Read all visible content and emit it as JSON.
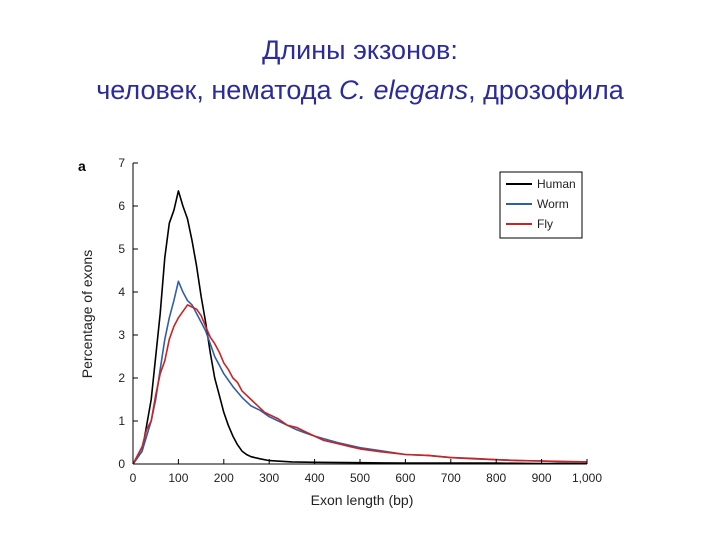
{
  "slide": {
    "title_line1": "Длины экзонов:",
    "title_line2_prefix": "человек, нематода ",
    "title_line2_italic": "C. elegans",
    "title_line2_suffix": ", дрозофила"
  },
  "chart_data": {
    "type": "line",
    "panel_label": "a",
    "xlabel": "Exon length (bp)",
    "ylabel": "Percentage of exons",
    "xlim": [
      0,
      1000
    ],
    "ylim": [
      0,
      7
    ],
    "xticks": [
      0,
      100,
      200,
      300,
      400,
      500,
      600,
      700,
      800,
      900,
      1000
    ],
    "xtick_labels": [
      "0",
      "100",
      "200",
      "300",
      "400",
      "500",
      "600",
      "700",
      "800",
      "900",
      "1,000"
    ],
    "yticks": [
      0,
      1,
      2,
      3,
      4,
      5,
      6,
      7
    ],
    "ytick_labels": [
      "0",
      "1",
      "2",
      "3",
      "4",
      "5",
      "6",
      "7"
    ],
    "grid": false,
    "legend_position": "top-right",
    "series": [
      {
        "name": "Human",
        "color": "#000000",
        "x": [
          0,
          20,
          40,
          60,
          70,
          80,
          90,
          100,
          110,
          120,
          130,
          140,
          150,
          160,
          170,
          180,
          190,
          200,
          210,
          220,
          230,
          240,
          250,
          260,
          280,
          300,
          350,
          400,
          500,
          600,
          700,
          800,
          900,
          1000
        ],
        "y": [
          0,
          0.3,
          1.5,
          3.5,
          4.8,
          5.6,
          5.9,
          6.35,
          6.0,
          5.7,
          5.2,
          4.6,
          3.9,
          3.3,
          2.6,
          2.0,
          1.6,
          1.2,
          0.9,
          0.65,
          0.45,
          0.3,
          0.22,
          0.17,
          0.12,
          0.08,
          0.05,
          0.04,
          0.03,
          0.02,
          0.02,
          0.02,
          0.01,
          0.01
        ]
      },
      {
        "name": "Worm",
        "color": "#2f5fa8",
        "x": [
          0,
          20,
          40,
          50,
          60,
          70,
          80,
          90,
          100,
          110,
          120,
          130,
          140,
          150,
          160,
          170,
          180,
          190,
          200,
          220,
          240,
          260,
          280,
          300,
          320,
          340,
          360,
          380,
          400,
          450,
          500,
          550,
          600,
          650,
          700,
          750,
          800,
          850,
          900,
          950,
          1000
        ],
        "y": [
          0,
          0.3,
          1.0,
          1.5,
          2.2,
          2.9,
          3.4,
          3.8,
          4.25,
          4.0,
          3.8,
          3.7,
          3.5,
          3.3,
          3.1,
          2.8,
          2.5,
          2.3,
          2.1,
          1.8,
          1.55,
          1.35,
          1.25,
          1.1,
          1.0,
          0.9,
          0.8,
          0.72,
          0.65,
          0.5,
          0.38,
          0.3,
          0.22,
          0.2,
          0.15,
          0.13,
          0.1,
          0.08,
          0.07,
          0.05,
          0.05
        ]
      },
      {
        "name": "Fly",
        "color": "#cc2222",
        "x": [
          0,
          20,
          30,
          40,
          50,
          60,
          70,
          80,
          90,
          100,
          110,
          120,
          130,
          140,
          150,
          160,
          170,
          180,
          190,
          200,
          210,
          220,
          230,
          240,
          250,
          260,
          270,
          280,
          290,
          300,
          320,
          340,
          360,
          380,
          400,
          420,
          440,
          460,
          480,
          500,
          550,
          600,
          650,
          700,
          750,
          800,
          850,
          900,
          950,
          1000
        ],
        "y": [
          0,
          0.4,
          0.8,
          1.0,
          1.6,
          2.1,
          2.4,
          2.9,
          3.2,
          3.4,
          3.55,
          3.7,
          3.65,
          3.6,
          3.45,
          3.2,
          2.95,
          2.8,
          2.6,
          2.35,
          2.2,
          2.0,
          1.9,
          1.7,
          1.6,
          1.5,
          1.4,
          1.3,
          1.2,
          1.15,
          1.05,
          0.9,
          0.85,
          0.75,
          0.65,
          0.55,
          0.5,
          0.45,
          0.4,
          0.35,
          0.28,
          0.22,
          0.2,
          0.15,
          0.12,
          0.1,
          0.08,
          0.07,
          0.06,
          0.05
        ]
      }
    ]
  }
}
